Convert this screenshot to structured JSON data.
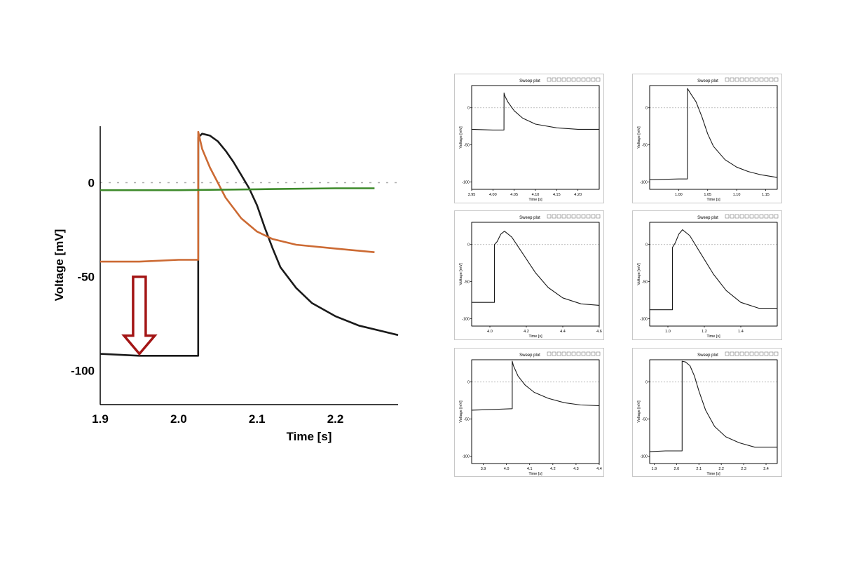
{
  "colors": {
    "black_trace": "#1a1a1a",
    "orange_trace": "#cc6a33",
    "green_trace": "#3d8a2a",
    "arrow": "#a31515",
    "zero_line": "#aaaaaa",
    "panel_border": "#c8c8c8",
    "panel_inner_bg": "#ffffff"
  },
  "chart_data": [
    {
      "type": "line",
      "title": "",
      "xlabel": "Time [s]",
      "ylabel": "Voltage [mV]",
      "xlim": [
        1.9,
        2.28
      ],
      "ylim": [
        -118,
        30
      ],
      "xticks": [
        "1.9",
        "2.0",
        "2.1",
        "2.2"
      ],
      "xtick_values": [
        1.9,
        2.0,
        2.1,
        2.2
      ],
      "yticks": [
        "0",
        "-50",
        "-100"
      ],
      "ytick_values": [
        0,
        -50,
        -100
      ],
      "zero_line": true,
      "annotation": "downward-arrow",
      "series": [
        {
          "color": "#1a1a1a",
          "x": [
            1.9,
            1.95,
            2.0,
            2.025,
            2.0251,
            2.03,
            2.04,
            2.05,
            2.06,
            2.07,
            2.08,
            2.09,
            2.1,
            2.11,
            2.12,
            2.13,
            2.15,
            2.17,
            2.2,
            2.23,
            2.26,
            2.28
          ],
          "y": [
            -91,
            -92,
            -92,
            -92,
            24,
            26,
            25,
            22,
            17,
            11,
            4,
            -3,
            -12,
            -24,
            -35,
            -45,
            -56,
            -64,
            -71,
            -76,
            -79,
            -81
          ]
        },
        {
          "color": "#cc6a33",
          "x": [
            1.9,
            1.95,
            2.0,
            2.025,
            2.0251,
            2.03,
            2.04,
            2.05,
            2.06,
            2.08,
            2.1,
            2.12,
            2.15,
            2.2,
            2.25
          ],
          "y": [
            -42,
            -42,
            -41,
            -41,
            27,
            18,
            8,
            0,
            -8,
            -19,
            -26,
            -30,
            -33,
            -35,
            -37
          ]
        },
        {
          "color": "#3d8a2a",
          "x": [
            1.9,
            2.0,
            2.1,
            2.2,
            2.25
          ],
          "y": [
            -4,
            -4,
            -3.5,
            -3,
            -3
          ]
        }
      ]
    },
    {
      "type": "line",
      "title": "Sweep plot",
      "xlabel": "Time [s]",
      "ylabel": "Voltage [mV]",
      "xlim": [
        3.95,
        4.25
      ],
      "ylim": [
        -110,
        30
      ],
      "xticks": [
        "3.95",
        "4.00",
        "4.05",
        "4.10",
        "4.15",
        "4.20"
      ],
      "xtick_values": [
        3.95,
        4.0,
        4.05,
        4.1,
        4.15,
        4.2
      ],
      "yticks": [
        "0",
        "-50",
        "-100"
      ],
      "ytick_values": [
        0,
        -50,
        -100
      ],
      "series": [
        {
          "color": "#1a1a1a",
          "x": [
            3.95,
            4.0,
            4.026,
            4.0261,
            4.028,
            4.035,
            4.05,
            4.07,
            4.1,
            4.15,
            4.2,
            4.25
          ],
          "y": [
            -29,
            -30,
            -30,
            20,
            16,
            8,
            -4,
            -14,
            -22,
            -27,
            -29,
            -29
          ]
        }
      ]
    },
    {
      "type": "line",
      "title": "Sweep plot",
      "xlabel": "Time [s]",
      "ylabel": "Voltage [mV]",
      "xlim": [
        0.95,
        1.17
      ],
      "ylim": [
        -110,
        30
      ],
      "xticks": [
        "1.00",
        "1.05",
        "1.10",
        "1.15"
      ],
      "xtick_values": [
        1.0,
        1.05,
        1.1,
        1.15
      ],
      "yticks": [
        "0",
        "-50",
        "-100"
      ],
      "ytick_values": [
        0,
        -50,
        -100
      ],
      "series": [
        {
          "color": "#1a1a1a",
          "x": [
            0.95,
            1.0,
            1.015,
            1.0151,
            1.02,
            1.03,
            1.04,
            1.05,
            1.06,
            1.08,
            1.1,
            1.12,
            1.14,
            1.17
          ],
          "y": [
            -97,
            -96,
            -96,
            26,
            20,
            8,
            -12,
            -35,
            -52,
            -70,
            -80,
            -86,
            -90,
            -94
          ]
        }
      ]
    },
    {
      "type": "line",
      "title": "Sweep plot",
      "xlabel": "Time [s]",
      "ylabel": "Voltage [mV]",
      "xlim": [
        3.9,
        4.6
      ],
      "ylim": [
        -110,
        30
      ],
      "xticks": [
        "4.0",
        "4.2",
        "4.4",
        "4.6"
      ],
      "xtick_values": [
        4.0,
        4.2,
        4.4,
        4.6
      ],
      "yticks": [
        "0",
        "-50",
        "-100"
      ],
      "ytick_values": [
        0,
        -50,
        -100
      ],
      "series": [
        {
          "color": "#1a1a1a",
          "x": [
            3.9,
            3.98,
            4.025,
            4.0251,
            4.04,
            4.06,
            4.08,
            4.12,
            4.18,
            4.25,
            4.32,
            4.4,
            4.5,
            4.6
          ],
          "y": [
            -78,
            -78,
            -78,
            0,
            4,
            14,
            18,
            10,
            -12,
            -38,
            -58,
            -72,
            -80,
            -82
          ]
        }
      ]
    },
    {
      "type": "line",
      "title": "Sweep plot",
      "xlabel": "Time [s]",
      "ylabel": "Voltage [mV]",
      "xlim": [
        0.9,
        1.6
      ],
      "ylim": [
        -110,
        30
      ],
      "xticks": [
        "1.0",
        "1.2",
        "1.4"
      ],
      "xtick_values": [
        1.0,
        1.2,
        1.4
      ],
      "yticks": [
        "0",
        "-50",
        "-100"
      ],
      "ytick_values": [
        0,
        -50,
        -100
      ],
      "series": [
        {
          "color": "#1a1a1a",
          "x": [
            0.9,
            1.0,
            1.025,
            1.0251,
            1.04,
            1.06,
            1.08,
            1.12,
            1.18,
            1.25,
            1.32,
            1.4,
            1.5,
            1.6
          ],
          "y": [
            -88,
            -88,
            -88,
            -4,
            2,
            14,
            20,
            12,
            -12,
            -40,
            -62,
            -78,
            -86,
            -86
          ]
        }
      ]
    },
    {
      "type": "line",
      "title": "Sweep plot",
      "xlabel": "Time [s]",
      "ylabel": "Voltage [mV]",
      "xlim": [
        3.85,
        4.4
      ],
      "ylim": [
        -110,
        30
      ],
      "xticks": [
        "3.9",
        "4.0",
        "4.1",
        "4.2",
        "4.3",
        "4.4"
      ],
      "xtick_values": [
        3.9,
        4.0,
        4.1,
        4.2,
        4.3,
        4.4
      ],
      "yticks": [
        "0",
        "-50",
        "-100"
      ],
      "ytick_values": [
        0,
        -50,
        -100
      ],
      "series": [
        {
          "color": "#1a1a1a",
          "x": [
            3.85,
            3.95,
            4.025,
            4.0251,
            4.03,
            4.05,
            4.08,
            4.12,
            4.18,
            4.25,
            4.32,
            4.4
          ],
          "y": [
            -38,
            -37,
            -36,
            28,
            22,
            8,
            -4,
            -14,
            -22,
            -28,
            -31,
            -32
          ]
        }
      ]
    },
    {
      "type": "line",
      "title": "Sweep plot",
      "xlabel": "Time [s]",
      "ylabel": "Voltage [mV]",
      "xlim": [
        1.88,
        2.45
      ],
      "ylim": [
        -110,
        30
      ],
      "xticks": [
        "1.9",
        "2.0",
        "2.1",
        "2.2",
        "2.3",
        "2.4"
      ],
      "xtick_values": [
        1.9,
        2.0,
        2.1,
        2.2,
        2.3,
        2.4
      ],
      "yticks": [
        "0",
        "-50",
        "-100"
      ],
      "ytick_values": [
        0,
        -50,
        -100
      ],
      "series": [
        {
          "color": "#1a1a1a",
          "x": [
            1.88,
            1.95,
            2.025,
            2.0251,
            2.04,
            2.06,
            2.08,
            2.1,
            2.13,
            2.17,
            2.22,
            2.28,
            2.35,
            2.45
          ],
          "y": [
            -94,
            -93,
            -93,
            28,
            27,
            22,
            8,
            -12,
            -38,
            -60,
            -74,
            -82,
            -88,
            -88
          ]
        }
      ]
    }
  ]
}
